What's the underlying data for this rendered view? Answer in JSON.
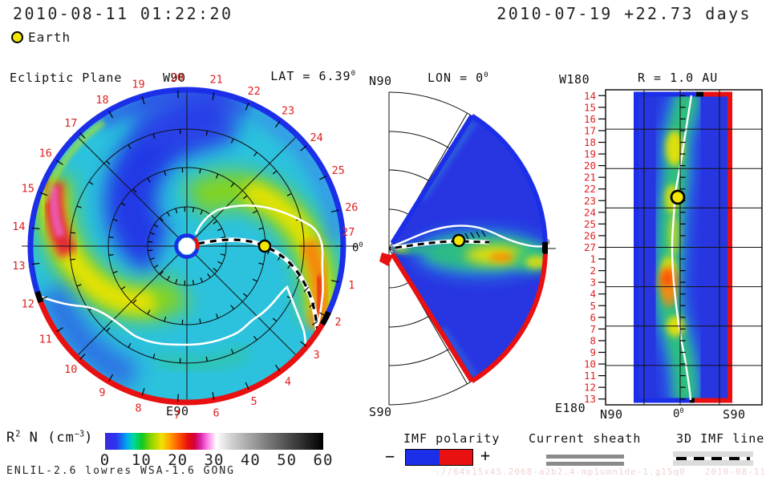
{
  "colors": {
    "label_red": "#e02020",
    "rim_blue": "#1b2fe8",
    "rim_red": "#e81010",
    "earth_yellow": "#f2e600",
    "base_turquoise": "#2cc2dd",
    "deep_blue": "#2433e6",
    "sheath_gray": "#8a8a8a",
    "imf_swatch_gray": "#dcdcdc",
    "faint_run_text": "#f2d2d2",
    "text": "#1a1a1a"
  },
  "header": {
    "datetime": "2010-08-11 01:22:20",
    "run_date_offset": "2010-07-19 +22.73 days",
    "earth_label": "Earth"
  },
  "ecliptic": {
    "title": "Ecliptic Plane",
    "top": "W90",
    "bottom": "E90",
    "lat_base": "LAT = 6.39",
    "lat_sup": "0",
    "zero_base": "0",
    "zero_sup": "0",
    "day_labels": [
      1,
      2,
      3,
      4,
      5,
      6,
      7,
      8,
      9,
      10,
      11,
      12,
      13,
      14,
      15,
      16,
      17,
      18,
      19,
      20,
      21,
      22,
      23,
      24,
      25,
      26,
      27
    ]
  },
  "meridional": {
    "title_base": "LON = 0",
    "title_sup": "0",
    "north": "N90",
    "south": "S90",
    "zero_base": "0",
    "zero_sup": "0"
  },
  "radial": {
    "title": "R = 1.0 AU",
    "west": "W180",
    "east": "E180",
    "day_labels": [
      14,
      15,
      16,
      17,
      18,
      19,
      20,
      21,
      22,
      23,
      24,
      25,
      26,
      27,
      1,
      2,
      3,
      4,
      5,
      6,
      7,
      8,
      9,
      10,
      11,
      12,
      13
    ],
    "axis_n": "N90",
    "axis_zero_base": "0",
    "axis_zero_sup": "0",
    "axis_s": "S90"
  },
  "colorbar": {
    "label_base1": "R",
    "label_sup1": "2",
    "label_base2": " N (cm",
    "label_sup2": "−3",
    "label_base3": ")",
    "ticks": [
      "0",
      "10",
      "20",
      "30",
      "40",
      "50",
      "60"
    ],
    "stops": [
      {
        "p": 0,
        "c": "#3c28e0"
      },
      {
        "p": 5,
        "c": "#2a35ee"
      },
      {
        "p": 10,
        "c": "#00a8f0"
      },
      {
        "p": 13,
        "c": "#00d8a0"
      },
      {
        "p": 17,
        "c": "#10c820"
      },
      {
        "p": 21,
        "c": "#8cd400"
      },
      {
        "p": 26,
        "c": "#f2e200"
      },
      {
        "p": 30,
        "c": "#ff9c00"
      },
      {
        "p": 34,
        "c": "#ff5000"
      },
      {
        "p": 38,
        "c": "#e80e0e"
      },
      {
        "p": 41,
        "c": "#d4003c"
      },
      {
        "p": 44,
        "c": "#dc28b4"
      },
      {
        "p": 47,
        "c": "#ff82e6"
      },
      {
        "p": 51,
        "c": "#ffffff"
      },
      {
        "p": 58,
        "c": "#d0d0d0"
      },
      {
        "p": 75,
        "c": "#787878"
      },
      {
        "p": 100,
        "c": "#000000"
      }
    ]
  },
  "legend": {
    "imf_title": "IMF polarity",
    "minus": "−",
    "plus": "+",
    "sheath_title": "Current sheath",
    "imf_line_title": "3D IMF line"
  },
  "footer": {
    "model": "ENLIL-2.6 lowres WSA-1.6 GONG",
    "run_id": ".//64x15x45.2068-a2b2.4-mp1umn1de-1.g15q0",
    "run_date": "2010-08-11"
  },
  "chart_data": [
    {
      "type": "heatmap",
      "panel": "ecliptic-plane",
      "title": "Ecliptic Plane",
      "annotation": "LAT = 6.39°",
      "axis_labels": {
        "top": "W90",
        "bottom": "E90",
        "right": "0°"
      },
      "angular_ticks_days": [
        1,
        2,
        3,
        4,
        5,
        6,
        7,
        8,
        9,
        10,
        11,
        12,
        13,
        14,
        15,
        16,
        17,
        18,
        19,
        20,
        21,
        22,
        23,
        24,
        25,
        26,
        27
      ],
      "quantity": "R² N (cm⁻³) scaled solar-wind density, 0-60 colour scale",
      "earth_marker": {
        "angle_day": 0,
        "r_au": 1.0
      },
      "sun_marker": {
        "r": 0,
        "note": "white disc with blue/red polarity ring"
      },
      "imf_polarity_rim": {
        "blue_negative_span_days": "from ~12 through W90 to ~2",
        "red_positive_span_days": "from ~2 through E90 to ~12"
      },
      "spiral_arms": [
        {
          "name": "arm through Earth",
          "inner_day": "~21 near Sun",
          "outer_day": "1-3 at rim",
          "peak_value": "~18-22 (orange)"
        },
        {
          "name": "opposite arm",
          "inner_day": "~7 near Sun",
          "outer_day": "15-17 at rim",
          "peak_value": "~25-30 (red/magenta)"
        }
      ],
      "lines": [
        "white current sheet spiral (two branches)",
        "black dashed 3D IMF line from Sun through Earth to rim near day 2"
      ]
    },
    {
      "type": "heatmap",
      "panel": "meridional-plane",
      "title": "LON = 0°",
      "axis_labels": {
        "top": "N90",
        "bottom": "S90",
        "right": "0°"
      },
      "wedge_extent_deg": "about ±58 around the equator, radius 0-2 AU",
      "earth_marker": {
        "r_au": 1.0,
        "lat_deg": 0
      },
      "features": [
        "dense green/yellow sheet near equator 1-2 AU (values ~10-20)",
        "dark blue lobes north/south (~2-5)",
        "white current sheet undulating a few degrees about equator",
        "black dashed IMF line along equator to Earth",
        "blue north boundary, red south boundary"
      ]
    },
    {
      "type": "heatmap",
      "panel": "radial-slice",
      "title": "R = 1.0 AU",
      "axis_labels": {
        "left_top": "W180",
        "left_bottom": "E180",
        "x": [
          "N90",
          "0°",
          "S90"
        ]
      },
      "y_ticks_days": [
        14,
        15,
        16,
        17,
        18,
        19,
        20,
        21,
        22,
        23,
        24,
        25,
        26,
        27,
        1,
        2,
        3,
        4,
        5,
        6,
        7,
        8,
        9,
        10,
        11,
        12,
        13
      ],
      "earth_marker": {
        "day": 22.73,
        "lat_deg": 0
      },
      "current_sheet_lat_by_day": {
        "14": 13,
        "17": 7,
        "20": 0,
        "23": -6,
        "27": -9,
        "3": -7,
        "7": -2,
        "10": 6,
        "13": 13
      },
      "hotspots": [
        {
          "days": "3-4",
          "value": "~25 (orange)"
        },
        {
          "days": "7",
          "value": "~20 (yellow)"
        },
        {
          "days": "18-23",
          "value": "~15 (yellow-green)"
        }
      ],
      "polarity_borders": {
        "north_side": "blue",
        "south_side": "red"
      }
    },
    {
      "type": "heatmap",
      "panel": "colorbar",
      "title": "R² N (cm⁻³)",
      "ticks": [
        0,
        10,
        20,
        30,
        40,
        50,
        60
      ],
      "range": [
        0,
        60
      ]
    }
  ]
}
